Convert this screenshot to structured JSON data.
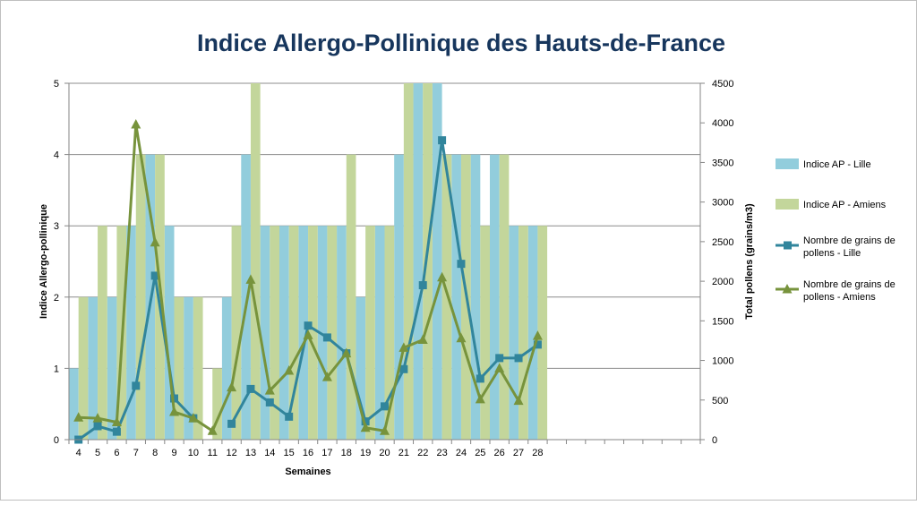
{
  "chart_data": {
    "type": "bar",
    "title": "Indice Allergo-Pollinique des Hauts-de-France",
    "xlabel": "Semaines",
    "ylabel": "Indice Allergo-pollinique",
    "y2label": "Total pollens (grains/m3)",
    "categories": [
      "4",
      "5",
      "6",
      "7",
      "8",
      "9",
      "10",
      "11",
      "12",
      "13",
      "14",
      "15",
      "16",
      "17",
      "18",
      "19",
      "20",
      "21",
      "22",
      "23",
      "24",
      "25",
      "26",
      "27",
      "28"
    ],
    "x_axis_extra_slots": 8,
    "ylim": [
      0,
      5
    ],
    "yticks": [
      "0",
      "1",
      "2",
      "3",
      "4",
      "5"
    ],
    "y2lim": [
      0,
      4500
    ],
    "y2ticks": [
      "0",
      "500",
      "1000",
      "1500",
      "2000",
      "2500",
      "3000",
      "3500",
      "4000",
      "4500"
    ],
    "grid": true,
    "legend_position": "right",
    "series": [
      {
        "name": "Indice AP - Lille",
        "kind": "bar",
        "axis": "left",
        "color": "#92cddc",
        "values": [
          1,
          2,
          2,
          3,
          4,
          3,
          2,
          0,
          2,
          4,
          3,
          3,
          3,
          3,
          3,
          2,
          3,
          4,
          5,
          5,
          4,
          4,
          4,
          3,
          3
        ]
      },
      {
        "name": "Indice AP - Amiens",
        "kind": "bar",
        "axis": "left",
        "color": "#c3d69b",
        "values": [
          2,
          3,
          3,
          4,
          4,
          2,
          2,
          1,
          3,
          5,
          3,
          3,
          3,
          3,
          4,
          3,
          3,
          5,
          5,
          4,
          4,
          3,
          4,
          3,
          3
        ]
      },
      {
        "name": "Nombre de grains de pollens - Lille",
        "kind": "line",
        "marker": "square",
        "axis": "right",
        "color": "#31859c",
        "values": [
          0,
          170,
          100,
          680,
          2070,
          520,
          270,
          null,
          200,
          640,
          470,
          290,
          1440,
          1290,
          1090,
          230,
          420,
          890,
          1950,
          3780,
          2220,
          770,
          1030,
          1030,
          1200
        ]
      },
      {
        "name": "Nombre de grains de pollens - Amiens",
        "kind": "line",
        "marker": "triangle",
        "axis": "right",
        "color": "#77933c",
        "values": [
          280,
          270,
          220,
          3980,
          2490,
          350,
          270,
          110,
          660,
          2020,
          620,
          870,
          1320,
          790,
          1090,
          150,
          110,
          1160,
          1260,
          2050,
          1280,
          510,
          900,
          490,
          1310
        ]
      }
    ]
  }
}
